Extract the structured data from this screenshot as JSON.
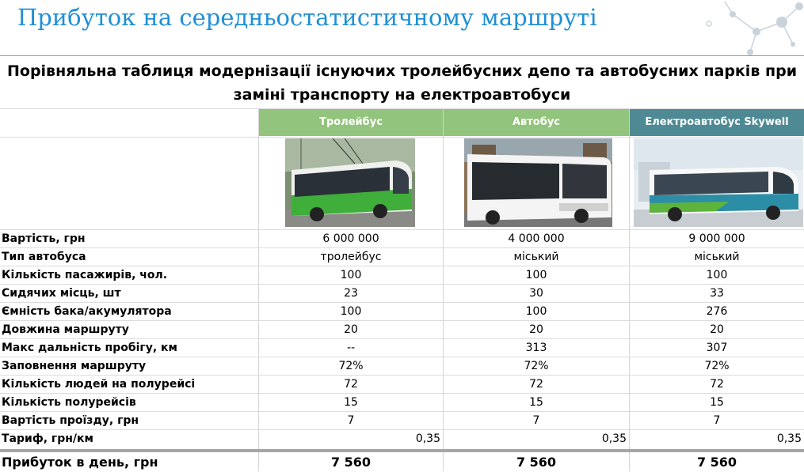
{
  "slide": {
    "title": "Прибуток на середньостатистичному маршруті",
    "colors": {
      "title": "#1f8fd6",
      "green_header": "#93c47d",
      "teal_header": "#4f8a94"
    }
  },
  "table": {
    "title_line1": "Порівняльна таблиця модернізації існуючих тролейбусних депо та автобусних парків при",
    "title_line2": "заміні транспорту на електроавтобуси",
    "columns": [
      {
        "header": "Тролейбус",
        "photo_icon": "trolleybus-photo"
      },
      {
        "header": "Автобус",
        "photo_icon": "bus-photo"
      },
      {
        "header": "Електроавтобус Skywell",
        "photo_icon": "electric-bus-photo"
      }
    ],
    "rows": [
      {
        "label": "Вартість, грн",
        "values": [
          "6 000 000",
          "4 000 000",
          "9 000 000"
        ]
      },
      {
        "label": "Тип автобуса",
        "values": [
          "тролейбус",
          "міський",
          "міський"
        ]
      },
      {
        "label": "Кількість пасажирів, чол.",
        "values": [
          "100",
          "100",
          "100"
        ]
      },
      {
        "label": "Сидячих місць, шт",
        "values": [
          "23",
          "30",
          "33"
        ]
      },
      {
        "label": "Ємність бака/акумулятора",
        "values": [
          "100",
          "100",
          "276"
        ]
      },
      {
        "label": "Довжина маршруту",
        "values": [
          "20",
          "20",
          "20"
        ]
      },
      {
        "label": "Макс дальність пробігу, км",
        "values": [
          "--",
          "313",
          "307"
        ]
      },
      {
        "label": "Заповнення маршруту",
        "values": [
          "72%",
          "72%",
          "72%"
        ]
      },
      {
        "label": "Кількість людей на полурейсі",
        "values": [
          "72",
          "72",
          "72"
        ]
      },
      {
        "label": "Кількість полурейсів",
        "values": [
          "15",
          "15",
          "15"
        ]
      },
      {
        "label": "Вартість проїзду, грн",
        "values": [
          "7",
          "7",
          "7"
        ]
      },
      {
        "label": "Тариф, грн/км",
        "values": [
          "0,35",
          "0,35",
          "0,35"
        ]
      }
    ],
    "total": {
      "label": "Прибуток в день, грн",
      "values": [
        "7 560",
        "7 560",
        "7 560"
      ]
    }
  }
}
